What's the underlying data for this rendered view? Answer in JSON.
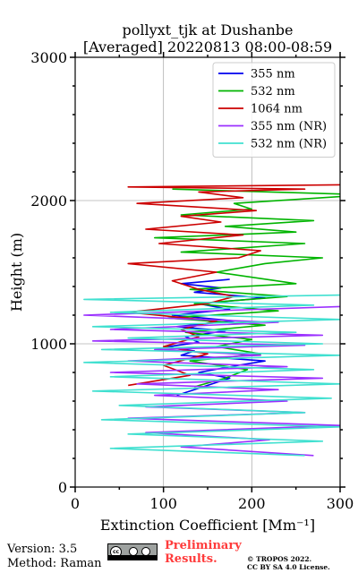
{
  "header": {
    "title_line1": "pollyxt_tjk at Dushanbe",
    "title_line2": "[Averaged] 20220813 08:00-08:59"
  },
  "footer": {
    "version": "Version: 3.5",
    "method": "Method: Raman",
    "preliminary_line1": "Preliminary",
    "preliminary_line2": "Results.",
    "copyright_line1": "© TROPOS 2022.",
    "copyright_line2": "CC BY SA 4.0 License.",
    "license_badge_text": "cc"
  },
  "colors": {
    "355 nm": "#0000ee",
    "532 nm": "#00b400",
    "1064 nm": "#cc0000",
    "355 nm (NR)": "#9b30ff",
    "532 nm (NR)": "#40e0d0",
    "grid": "#b0b0b0",
    "preliminary": "#ff3b3b"
  },
  "chart_data": {
    "type": "line",
    "xlabel": "Extinction Coefficient [Mm⁻¹]",
    "ylabel": "Height (m)",
    "xlim": [
      0,
      300
    ],
    "ylim": [
      0,
      3000
    ],
    "xticks": [
      0,
      100,
      200,
      300
    ],
    "yticks": [
      0,
      1000,
      2000,
      3000
    ],
    "grid": true,
    "legend_position": "top-right",
    "series": [
      {
        "name": "355 nm",
        "x": [
          115,
          145,
          175,
          140,
          185,
          215,
          170,
          120,
          135,
          105,
          140,
          125,
          170,
          115,
          180,
          110,
          175,
          140,
          215,
          135,
          165,
          120,
          175
        ],
        "y": [
          640,
          700,
          760,
          800,
          850,
          880,
          900,
          920,
          950,
          980,
          1010,
          1050,
          1090,
          1120,
          1160,
          1200,
          1240,
          1280,
          1320,
          1360,
          1390,
          1420,
          1450
        ]
      },
      {
        "name": "532 nm",
        "x": [
          135,
          170,
          195,
          130,
          210,
          160,
          200,
          125,
          215,
          105,
          230,
          135,
          240,
          130,
          250,
          160,
          215,
          280,
          120,
          260,
          90,
          250,
          170,
          270,
          120,
          200,
          180,
          330,
          110
        ],
        "y": [
          700,
          760,
          820,
          880,
          930,
          980,
          1030,
          1080,
          1130,
          1180,
          1230,
          1280,
          1330,
          1380,
          1420,
          1500,
          1560,
          1600,
          1640,
          1700,
          1740,
          1780,
          1820,
          1860,
          1900,
          1940,
          1980,
          2040,
          2080
        ]
      },
      {
        "name": "1064 nm",
        "x": [
          60,
          130,
          100,
          150,
          100,
          140,
          120,
          160,
          60,
          150,
          180,
          140,
          110,
          160,
          60,
          185,
          210,
          95,
          190,
          80,
          165,
          120,
          205,
          70,
          190,
          140,
          260,
          60,
          300
        ],
        "y": [
          710,
          780,
          850,
          930,
          980,
          1050,
          1100,
          1160,
          1220,
          1280,
          1330,
          1380,
          1440,
          1500,
          1560,
          1600,
          1650,
          1700,
          1760,
          1800,
          1850,
          1890,
          1930,
          1980,
          2020,
          2060,
          2080,
          2095,
          2110
        ]
      },
      {
        "name": "355 nm (NR)",
        "x": [
          270,
          120,
          220,
          80,
          300,
          60,
          260,
          80,
          240,
          90,
          230,
          70,
          280,
          40,
          240,
          60,
          210,
          90,
          260,
          20,
          280,
          40,
          230,
          10,
          300
        ],
        "y": [
          220,
          280,
          330,
          380,
          430,
          480,
          520,
          560,
          600,
          640,
          680,
          720,
          760,
          800,
          840,
          880,
          920,
          960,
          990,
          1020,
          1060,
          1100,
          1150,
          1200,
          1260
        ]
      },
      {
        "name": "532 nm (NR)",
        "x": [
          260,
          40,
          280,
          60,
          300,
          30,
          260,
          50,
          290,
          20,
          300,
          40,
          270,
          10,
          300,
          30,
          280,
          60,
          250,
          20,
          300,
          40,
          270,
          10,
          300
        ],
        "y": [
          220,
          270,
          320,
          370,
          420,
          470,
          520,
          570,
          620,
          670,
          720,
          770,
          820,
          870,
          920,
          960,
          1000,
          1040,
          1080,
          1120,
          1170,
          1220,
          1270,
          1310,
          1340
        ]
      }
    ]
  }
}
